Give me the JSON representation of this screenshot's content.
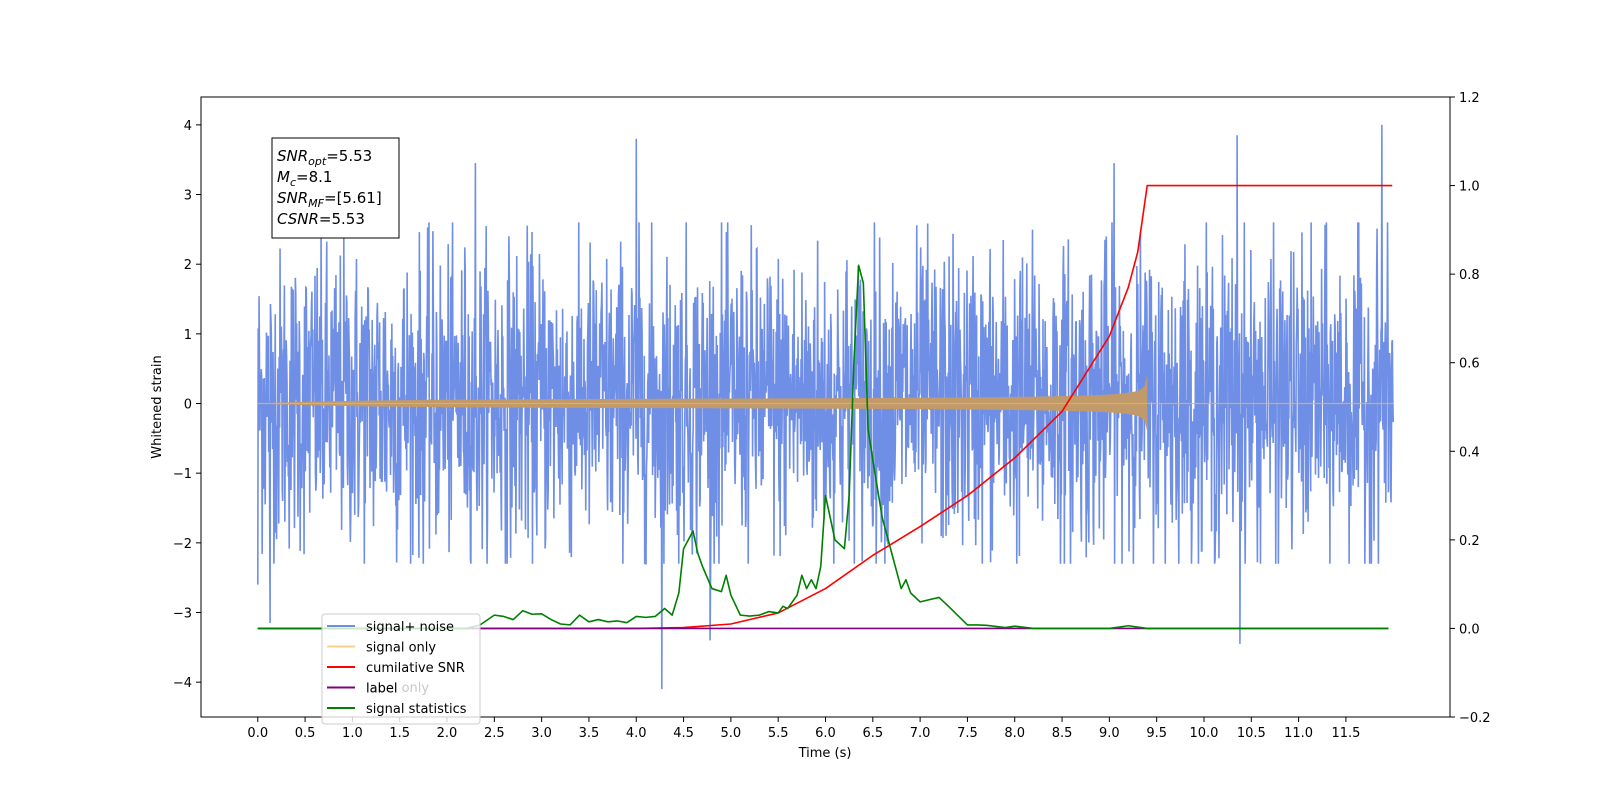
{
  "chart_data": {
    "type": "line",
    "title": "",
    "xlabel": "Time (s)",
    "ylabel": "Whitened strain",
    "y2label": "",
    "xlim": [
      -0.6,
      12.6
    ],
    "ylim": [
      -4.5,
      4.4
    ],
    "y2lim": [
      -0.2,
      1.2
    ],
    "x_ticks": [
      0.0,
      0.5,
      1.0,
      1.5,
      2.0,
      2.5,
      3.0,
      3.5,
      4.0,
      4.5,
      5.0,
      5.5,
      6.0,
      6.5,
      7.0,
      7.5,
      8.0,
      8.5,
      9.0,
      9.5,
      10.0,
      10.5,
      11.0,
      11.5
    ],
    "x_tick_labels": [
      "0.0",
      "0.5",
      "1.0",
      "1.5",
      "2.0",
      "2.5",
      "3.0",
      "3.5",
      "4.0",
      "4.5",
      "5.0",
      "5.5",
      "6.0",
      "6.5",
      "7.0",
      "7.5",
      "8.0",
      "8.5",
      "9.0",
      "9.5",
      "10.0",
      "10.5",
      "11.0",
      "11.5"
    ],
    "y_ticks": [
      -4,
      -3,
      -2,
      -1,
      0,
      1,
      2,
      3,
      4
    ],
    "y_tick_labels": [
      "−4",
      "−3",
      "−2",
      "−1",
      "0",
      "1",
      "2",
      "3",
      "4"
    ],
    "y2_ticks": [
      -0.2,
      0.0,
      0.2,
      0.4,
      0.6,
      0.8,
      1.0,
      1.2
    ],
    "y2_tick_labels": [
      "−0.2",
      "0.0",
      "0.2",
      "0.4",
      "0.6",
      "0.8",
      "1.0",
      "1.2"
    ],
    "grid": false,
    "legend_position": "lower-left",
    "annotation": {
      "lines": [
        {
          "var": "SNR",
          "sub": "opt",
          "value": "=5.53"
        },
        {
          "var": "M",
          "sub": "c",
          "value": "=8.1"
        },
        {
          "var": "SNR",
          "sub": "MF",
          "value": "=[5.61]"
        },
        {
          "var": "CSNR",
          "sub": "",
          "value": "=5.53"
        }
      ]
    },
    "series": [
      {
        "name": "signal+ noise",
        "color": "#6f8fe6",
        "axis": "left",
        "kind": "noise",
        "x_range": [
          0.0,
          12.0
        ],
        "typical_range": [
          -1.9,
          2.0
        ],
        "peaks": [
          {
            "x": 0.0,
            "y": 1.75
          },
          {
            "x": 0.0,
            "y": -2.6
          },
          {
            "x": 0.13,
            "y": -3.15
          },
          {
            "x": 2.3,
            "y": 3.45
          },
          {
            "x": 4.0,
            "y": 3.8
          },
          {
            "x": 4.27,
            "y": -4.1
          },
          {
            "x": 4.78,
            "y": -3.4
          },
          {
            "x": 9.05,
            "y": 3.45
          },
          {
            "x": 10.35,
            "y": 3.85
          },
          {
            "x": 10.38,
            "y": -3.45
          },
          {
            "x": 11.88,
            "y": 4.0
          }
        ]
      },
      {
        "name": "signal only",
        "color": "#f5b041",
        "axis": "left",
        "kind": "chirp",
        "x_range": [
          0.0,
          12.0
        ],
        "merger_time": 9.4,
        "peak_amplitude": 0.55
      },
      {
        "name": "cumilative SNR",
        "color": "#ff0000",
        "axis": "right",
        "kind": "line",
        "x": [
          0.0,
          4.0,
          4.5,
          5.0,
          5.5,
          6.0,
          6.5,
          7.0,
          7.5,
          8.0,
          8.5,
          9.0,
          9.2,
          9.3,
          9.4,
          10.0,
          11.0,
          11.99
        ],
        "y": [
          0.0,
          0.0,
          0.002,
          0.01,
          0.035,
          0.09,
          0.165,
          0.23,
          0.3,
          0.385,
          0.49,
          0.66,
          0.77,
          0.85,
          1.0,
          1.0,
          1.0,
          1.0
        ]
      },
      {
        "name": "label",
        "color": "#800080",
        "axis": "right",
        "kind": "line",
        "x": [
          0.0,
          11.95
        ],
        "y": [
          0.0,
          0.0
        ]
      },
      {
        "name": "signal statistics",
        "color": "#008000",
        "axis": "right",
        "kind": "line",
        "x": [
          0.0,
          2.0,
          2.2,
          2.35,
          2.5,
          2.6,
          2.7,
          2.8,
          2.9,
          3.0,
          3.1,
          3.2,
          3.3,
          3.4,
          3.5,
          3.6,
          3.7,
          3.8,
          3.9,
          4.0,
          4.1,
          4.2,
          4.3,
          4.38,
          4.45,
          4.5,
          4.55,
          4.6,
          4.65,
          4.7,
          4.8,
          4.9,
          4.95,
          5.0,
          5.1,
          5.2,
          5.3,
          5.4,
          5.5,
          5.55,
          5.6,
          5.7,
          5.75,
          5.8,
          5.85,
          5.9,
          5.95,
          6.0,
          6.05,
          6.1,
          6.2,
          6.25,
          6.3,
          6.35,
          6.4,
          6.45,
          6.5,
          6.6,
          6.7,
          6.8,
          6.85,
          6.9,
          7.0,
          7.1,
          7.2,
          7.3,
          7.5,
          7.6,
          7.7,
          7.9,
          8.0,
          8.2,
          8.5,
          9.0,
          9.2,
          9.4,
          9.6,
          11.95
        ],
        "y": [
          0.0,
          0.0,
          0.0,
          0.008,
          0.03,
          0.027,
          0.02,
          0.04,
          0.032,
          0.033,
          0.02,
          0.01,
          0.008,
          0.03,
          0.015,
          0.02,
          0.015,
          0.017,
          0.013,
          0.027,
          0.025,
          0.027,
          0.045,
          0.03,
          0.08,
          0.18,
          0.2,
          0.22,
          0.17,
          0.14,
          0.09,
          0.083,
          0.12,
          0.075,
          0.03,
          0.028,
          0.03,
          0.038,
          0.035,
          0.05,
          0.045,
          0.075,
          0.12,
          0.09,
          0.11,
          0.09,
          0.14,
          0.3,
          0.25,
          0.2,
          0.18,
          0.3,
          0.6,
          0.82,
          0.78,
          0.45,
          0.38,
          0.25,
          0.17,
          0.09,
          0.11,
          0.08,
          0.06,
          0.065,
          0.07,
          0.05,
          0.008,
          0.008,
          0.007,
          0.002,
          0.005,
          0.0,
          0.0,
          0.0,
          0.006,
          0.0,
          0.0,
          0.0
        ]
      }
    ],
    "legend": [
      {
        "label": "signal+ noise",
        "color": "#6f8fe6",
        "alpha": 1.0
      },
      {
        "label": "signal only",
        "color": "#f5b041",
        "alpha": 0.6
      },
      {
        "label": "cumilative SNR",
        "color": "#ff0000",
        "alpha": 1.0
      },
      {
        "label": "label",
        "color": "#800080",
        "alpha": 1.0
      },
      {
        "label": "signal statistics",
        "color": "#008000",
        "alpha": 1.0
      }
    ],
    "legend_hidden_text": "label only"
  }
}
